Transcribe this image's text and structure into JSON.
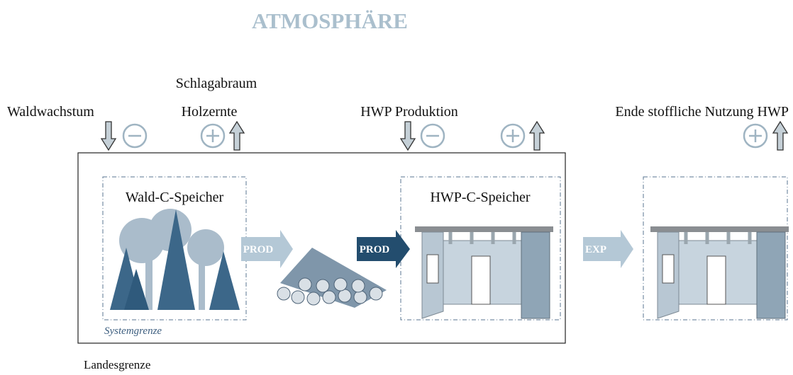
{
  "title": "ATMOSPHÄRE",
  "flows": {
    "waldwachstum": "Waldwachstum",
    "schlagabraum": "Schlagabraum",
    "holzernte": "Holzernte",
    "hwp_produktion": "HWP Produktion",
    "ende_nutzung": "Ende stoffliche Nutzung HWP"
  },
  "pools": {
    "wald": "Wald-C-Speicher",
    "hwp": "HWP-C-Speicher"
  },
  "arrows": {
    "prod1": "PROD",
    "prod2": "PROD",
    "exp": "EXP"
  },
  "boundaries": {
    "system": "Systemgrenze",
    "country": "Landesgrenze"
  }
}
